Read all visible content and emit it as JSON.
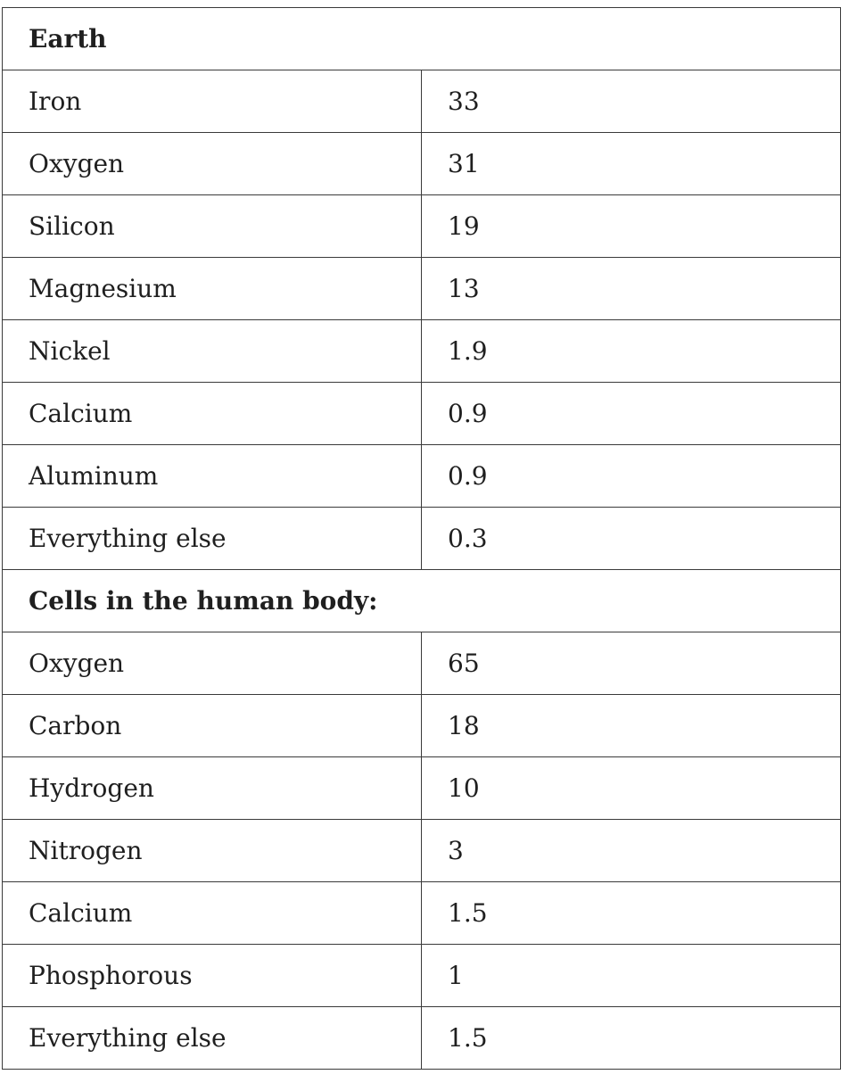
{
  "sections": [
    {
      "heading": "Earth",
      "rows": [
        {
          "element": "Iron",
          "value": "33"
        },
        {
          "element": "Oxygen",
          "value": "31"
        },
        {
          "element": "Silicon",
          "value": "19"
        },
        {
          "element": "Magnesium",
          "value": "13"
        },
        {
          "element": "Nickel",
          "value": "1.9"
        },
        {
          "element": "Calcium",
          "value": "0.9"
        },
        {
          "element": "Aluminum",
          "value": "0.9"
        },
        {
          "element": "Everything else",
          "value": "0.3"
        }
      ]
    },
    {
      "heading": "Cells in the human body:",
      "rows": [
        {
          "element": "Oxygen",
          "value": "65"
        },
        {
          "element": "Carbon",
          "value": "18"
        },
        {
          "element": "Hydrogen",
          "value": "10"
        },
        {
          "element": "Nitrogen",
          "value": "3"
        },
        {
          "element": "Calcium",
          "value": "1.5"
        },
        {
          "element": "Phosphorous",
          "value": "1"
        },
        {
          "element": "Everything else",
          "value": "1.5"
        }
      ]
    }
  ]
}
